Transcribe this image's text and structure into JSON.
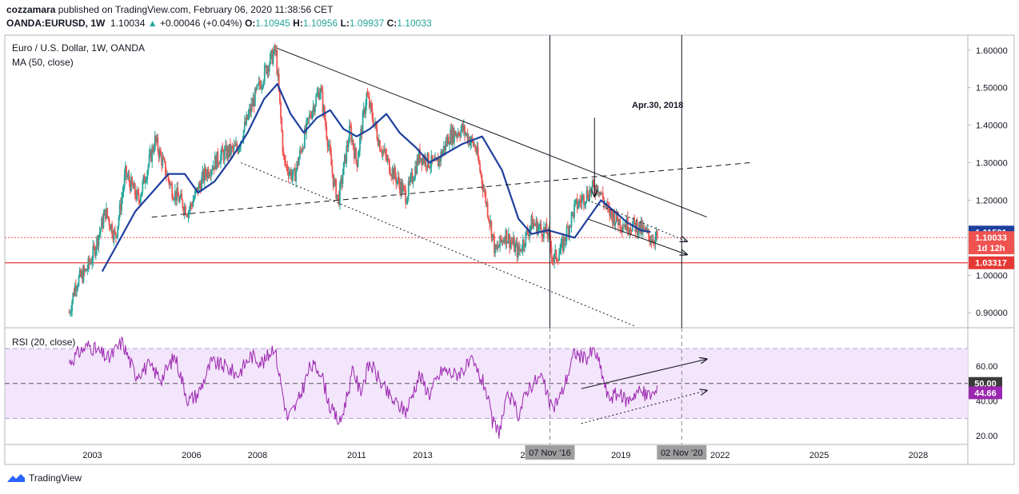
{
  "header": {
    "publisher": "cozzamara",
    "published_text": "published on TradingView.com, February 06, 2020 11:38:56 CET",
    "symbol": "OANDA:EURUSD, 1W",
    "price": "1.10034",
    "change_arrow": "▲",
    "change": "+0.00046 (+0.04%)",
    "o_label": "O:",
    "o_value": "1.10945",
    "h_label": "H:",
    "h_value": "1.10956",
    "l_label": "L:",
    "l_value": "1.09937",
    "c_label": "C:",
    "c_value": "1.10033"
  },
  "legend": {
    "main_title": "Euro / U.S. Dollar, 1W, OANDA",
    "ma_label": "MA (50, close)",
    "rsi_label": "RSI (20, close)"
  },
  "annotation": {
    "text": "Apr.30, 2018"
  },
  "branding": {
    "text": "TradingView"
  },
  "colors": {
    "up": "#26a69a",
    "down": "#ef5350",
    "ma": "#1e3f9e",
    "rsi": "#9c27b0",
    "rsi_band": "#f3e5fb",
    "support_line": "#e53935",
    "price_label": "#ef5350",
    "ma_label": "#1e3f9e"
  },
  "chart_data": [
    {
      "type": "candlestick",
      "title": "Euro / U.S. Dollar, 1W, OANDA",
      "ylim": [
        0.86,
        1.64
      ],
      "y_ticks": [
        "1.60000",
        "1.50000",
        "1.40000",
        "1.30000",
        "1.20000",
        "1.10000",
        "1.00000",
        "0.90000"
      ],
      "y_tick_values": [
        1.6,
        1.5,
        1.4,
        1.3,
        1.2,
        1.1,
        1.0,
        0.9
      ],
      "x_ticks": [
        "2003",
        "2006",
        "2008",
        "2011",
        "2013",
        "20",
        "2019",
        "2022",
        "2025",
        "2028"
      ],
      "x_tick_years": [
        2003.0,
        2006.0,
        2008.0,
        2011.0,
        2013.0,
        2016.1,
        2019.0,
        2022.0,
        2025.0,
        2028.0
      ],
      "x_range": [
        2000.35,
        2029.5
      ],
      "close_path": [
        [
          2002.3,
          0.9
        ],
        [
          2002.5,
          0.98
        ],
        [
          2002.8,
          1.01
        ],
        [
          2003.0,
          1.05
        ],
        [
          2003.4,
          1.17
        ],
        [
          2003.7,
          1.1
        ],
        [
          2004.0,
          1.27
        ],
        [
          2004.4,
          1.2
        ],
        [
          2004.9,
          1.36
        ],
        [
          2005.4,
          1.23
        ],
        [
          2005.9,
          1.17
        ],
        [
          2006.4,
          1.27
        ],
        [
          2006.9,
          1.32
        ],
        [
          2007.4,
          1.34
        ],
        [
          2007.9,
          1.47
        ],
        [
          2008.3,
          1.56
        ],
        [
          2008.55,
          1.6
        ],
        [
          2008.8,
          1.3
        ],
        [
          2009.1,
          1.26
        ],
        [
          2009.6,
          1.43
        ],
        [
          2009.9,
          1.5
        ],
        [
          2010.3,
          1.25
        ],
        [
          2010.45,
          1.2
        ],
        [
          2010.8,
          1.39
        ],
        [
          2011.0,
          1.3
        ],
        [
          2011.3,
          1.48
        ],
        [
          2011.7,
          1.35
        ],
        [
          2012.0,
          1.29
        ],
        [
          2012.5,
          1.21
        ],
        [
          2012.9,
          1.32
        ],
        [
          2013.4,
          1.29
        ],
        [
          2013.8,
          1.37
        ],
        [
          2014.2,
          1.39
        ],
        [
          2014.6,
          1.34
        ],
        [
          2015.0,
          1.16
        ],
        [
          2015.2,
          1.06
        ],
        [
          2015.5,
          1.11
        ],
        [
          2015.9,
          1.06
        ],
        [
          2016.3,
          1.14
        ],
        [
          2016.8,
          1.11
        ],
        [
          2016.95,
          1.04
        ],
        [
          2017.2,
          1.07
        ],
        [
          2017.6,
          1.18
        ],
        [
          2018.0,
          1.22
        ],
        [
          2018.3,
          1.24
        ],
        [
          2018.6,
          1.17
        ],
        [
          2019.0,
          1.14
        ],
        [
          2019.5,
          1.13
        ],
        [
          2019.9,
          1.1
        ],
        [
          2020.1,
          1.1
        ]
      ],
      "ma_path": [
        [
          2003.3,
          1.01
        ],
        [
          2003.8,
          1.09
        ],
        [
          2004.3,
          1.17
        ],
        [
          2004.8,
          1.22
        ],
        [
          2005.3,
          1.27
        ],
        [
          2005.8,
          1.27
        ],
        [
          2006.2,
          1.22
        ],
        [
          2006.7,
          1.25
        ],
        [
          2007.2,
          1.31
        ],
        [
          2007.7,
          1.38
        ],
        [
          2008.2,
          1.47
        ],
        [
          2008.6,
          1.51
        ],
        [
          2009.0,
          1.43
        ],
        [
          2009.4,
          1.38
        ],
        [
          2009.8,
          1.42
        ],
        [
          2010.2,
          1.44
        ],
        [
          2010.6,
          1.39
        ],
        [
          2011.0,
          1.37
        ],
        [
          2011.4,
          1.39
        ],
        [
          2011.9,
          1.43
        ],
        [
          2012.3,
          1.38
        ],
        [
          2012.8,
          1.34
        ],
        [
          2013.2,
          1.3
        ],
        [
          2013.6,
          1.32
        ],
        [
          2014.2,
          1.35
        ],
        [
          2014.8,
          1.37
        ],
        [
          2015.4,
          1.28
        ],
        [
          2015.9,
          1.15
        ],
        [
          2016.3,
          1.11
        ],
        [
          2016.8,
          1.12
        ],
        [
          2017.2,
          1.11
        ],
        [
          2017.6,
          1.1
        ],
        [
          2018.0,
          1.15
        ],
        [
          2018.4,
          1.2
        ],
        [
          2018.8,
          1.17
        ],
        [
          2019.2,
          1.14
        ],
        [
          2019.6,
          1.12
        ],
        [
          2019.9,
          1.115
        ]
      ],
      "trendlines": [
        {
          "style": "solid",
          "from": [
            2008.6,
            1.605
          ],
          "to": [
            2021.6,
            1.155
          ]
        },
        {
          "style": "dashed",
          "from": [
            2004.8,
            1.155
          ],
          "to": [
            2022.9,
            1.3
          ]
        },
        {
          "style": "dotted",
          "from": [
            2007.5,
            1.3
          ],
          "to": [
            2019.4,
            0.865
          ]
        },
        {
          "style": "solid",
          "from": [
            2018.0,
            1.15
          ],
          "to": [
            2021.0,
            1.055
          ]
        },
        {
          "style": "dotted",
          "from": [
            2018.0,
            1.2
          ],
          "to": [
            2021.0,
            1.09
          ]
        }
      ],
      "vertical_lines": [
        2016.85,
        2020.84
      ],
      "support_level": 1.03317,
      "current_price_level": 1.10033,
      "price_labels": [
        {
          "value": 1.11501,
          "text": "1.11501",
          "kind": "ma"
        },
        {
          "value": 1.10033,
          "text": "1.10033",
          "kind": "price"
        },
        {
          "value": 1.073,
          "text": "1d 12h",
          "kind": "price"
        },
        {
          "value": 1.03317,
          "text": "1.03317",
          "kind": "support"
        }
      ],
      "annotation_arrow": {
        "from": [
          2018.2,
          1.42
        ],
        "to": [
          2018.2,
          1.21
        ]
      }
    },
    {
      "type": "line",
      "title": "RSI (20, close)",
      "ylim": [
        15,
        82
      ],
      "y_ticks": [
        "60.00",
        "40.00",
        "20.00"
      ],
      "y_tick_values": [
        60,
        40,
        20
      ],
      "band": [
        30,
        70
      ],
      "midline": 50,
      "labels": [
        {
          "value": 50,
          "text": "50.00",
          "kind": "mid"
        },
        {
          "value": 44.66,
          "text": "44.66",
          "kind": "rsi"
        }
      ],
      "path": [
        [
          2002.3,
          62
        ],
        [
          2002.6,
          68
        ],
        [
          2002.9,
          72
        ],
        [
          2003.2,
          68
        ],
        [
          2003.5,
          64
        ],
        [
          2003.9,
          74
        ],
        [
          2004.3,
          55
        ],
        [
          2004.7,
          60
        ],
        [
          2005.1,
          53
        ],
        [
          2005.5,
          66
        ],
        [
          2005.9,
          40
        ],
        [
          2006.2,
          44
        ],
        [
          2006.6,
          62
        ],
        [
          2007.0,
          60
        ],
        [
          2007.4,
          55
        ],
        [
          2007.8,
          66
        ],
        [
          2008.2,
          62
        ],
        [
          2008.5,
          72
        ],
        [
          2008.9,
          30
        ],
        [
          2009.2,
          38
        ],
        [
          2009.6,
          60
        ],
        [
          2009.9,
          58
        ],
        [
          2010.2,
          36
        ],
        [
          2010.5,
          27
        ],
        [
          2010.9,
          58
        ],
        [
          2011.1,
          45
        ],
        [
          2011.4,
          62
        ],
        [
          2011.8,
          48
        ],
        [
          2012.1,
          40
        ],
        [
          2012.5,
          34
        ],
        [
          2012.9,
          55
        ],
        [
          2013.2,
          44
        ],
        [
          2013.6,
          58
        ],
        [
          2014.0,
          55
        ],
        [
          2014.5,
          62
        ],
        [
          2014.9,
          48
        ],
        [
          2015.1,
          28
        ],
        [
          2015.3,
          22
        ],
        [
          2015.6,
          44
        ],
        [
          2015.9,
          32
        ],
        [
          2016.2,
          48
        ],
        [
          2016.6,
          54
        ],
        [
          2016.9,
          35
        ],
        [
          2017.2,
          44
        ],
        [
          2017.6,
          68
        ],
        [
          2017.9,
          64
        ],
        [
          2018.2,
          69
        ],
        [
          2018.4,
          58
        ],
        [
          2018.6,
          42
        ],
        [
          2018.9,
          44
        ],
        [
          2019.2,
          40
        ],
        [
          2019.5,
          46
        ],
        [
          2019.8,
          43
        ],
        [
          2020.1,
          45
        ]
      ],
      "trendlines": [
        {
          "style": "solid",
          "from": [
            2017.8,
            47
          ],
          "to": [
            2021.6,
            64
          ]
        },
        {
          "style": "dotted",
          "from": [
            2017.8,
            27
          ],
          "to": [
            2021.6,
            46
          ]
        }
      ]
    }
  ]
}
